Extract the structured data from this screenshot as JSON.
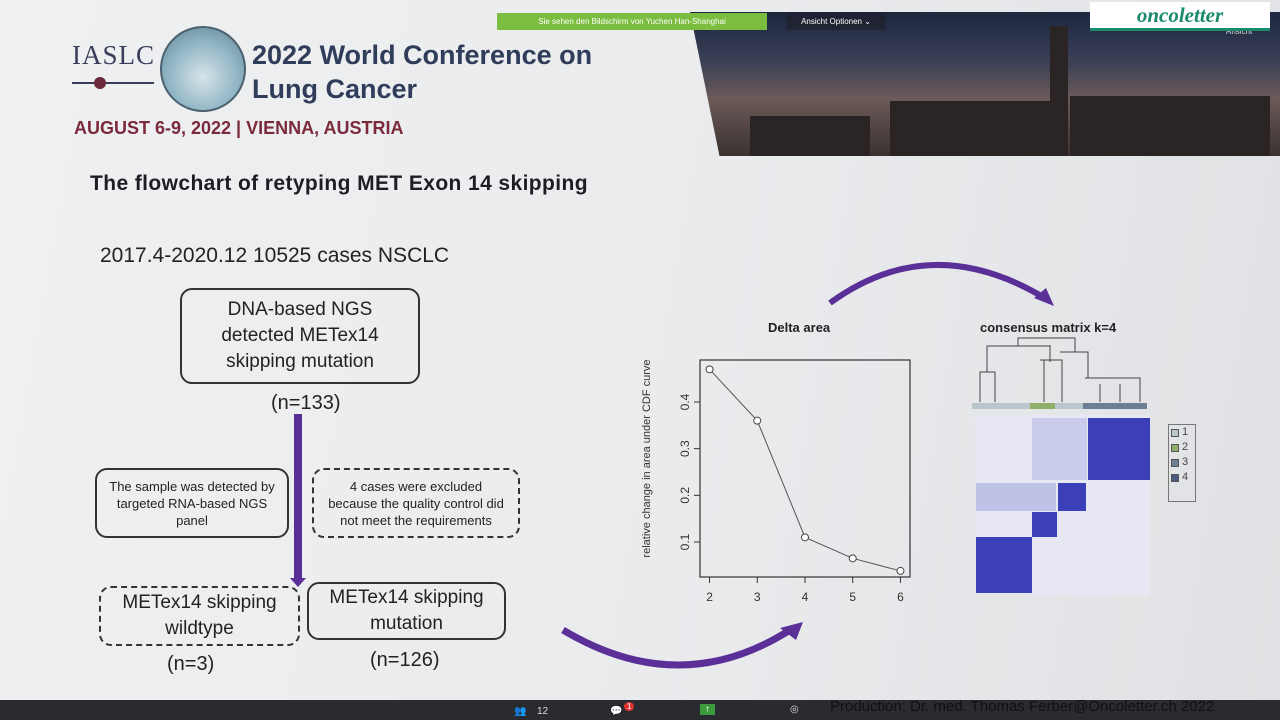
{
  "header": {
    "org": "IASLC",
    "conference_title": "2022 World Conference on Lung Cancer",
    "conference_date": "AUGUST 6-9, 2022 | VIENNA, AUSTRIA"
  },
  "zoom": {
    "share_banner": "Sie sehen den Bildschirm von Yuchen Han-Shanghai",
    "view_options": "Ansicht Optionen ⌄",
    "ansicht": "Ansicht",
    "participants_count": "12",
    "chat_badge": "1"
  },
  "watermark": {
    "brand": "oncoletter"
  },
  "slide": {
    "title": "The flowchart of retyping MET Exon 14 skipping",
    "cases_line": "2017.4-2020.12 10525 cases NSCLC",
    "ngs_box": "DNA-based NGS detected METex14 skipping mutation",
    "ngs_count": "(n=133)",
    "rna_box": "The sample was detected by targeted RNA-based NGS panel",
    "excluded_box": "4 cases were excluded because the quality control did not meet the requirements",
    "wildtype_box": "METex14 skipping wildtype",
    "wildtype_count": "(n=3)",
    "mutation_box": "METex14 skipping mutation",
    "mutation_count": "(n=126)",
    "delta_title": "Delta area",
    "consensus_title": "consensus matrix k=4"
  },
  "chart_data": {
    "type": "line",
    "title": "Delta area",
    "xlabel": "",
    "ylabel": "relative change in area under CDF curve",
    "x": [
      2,
      3,
      4,
      5,
      6
    ],
    "y": [
      0.47,
      0.36,
      0.11,
      0.065,
      0.038
    ],
    "xlim": [
      1.8,
      6.2
    ],
    "ylim": [
      0.025,
      0.49
    ],
    "xticks": [
      "2",
      "3",
      "4",
      "5",
      "6"
    ],
    "yticks": [
      "0.1",
      "0.2",
      "0.3",
      "0.4"
    ]
  },
  "legend": {
    "items": [
      "1",
      "2",
      "3",
      "4"
    ],
    "colors": [
      "#b9c6cc",
      "#8fae6a",
      "#6c7f95",
      "#4a5a80"
    ]
  },
  "footer": {
    "credit": "Production: Dr. med. Thomas Ferber@Oncoletter.ch 2022"
  },
  "colors": {
    "accent_purple": "#5b2f98",
    "heatmap_blue": "#3b3fb8",
    "date_red": "#7a2a3b"
  }
}
